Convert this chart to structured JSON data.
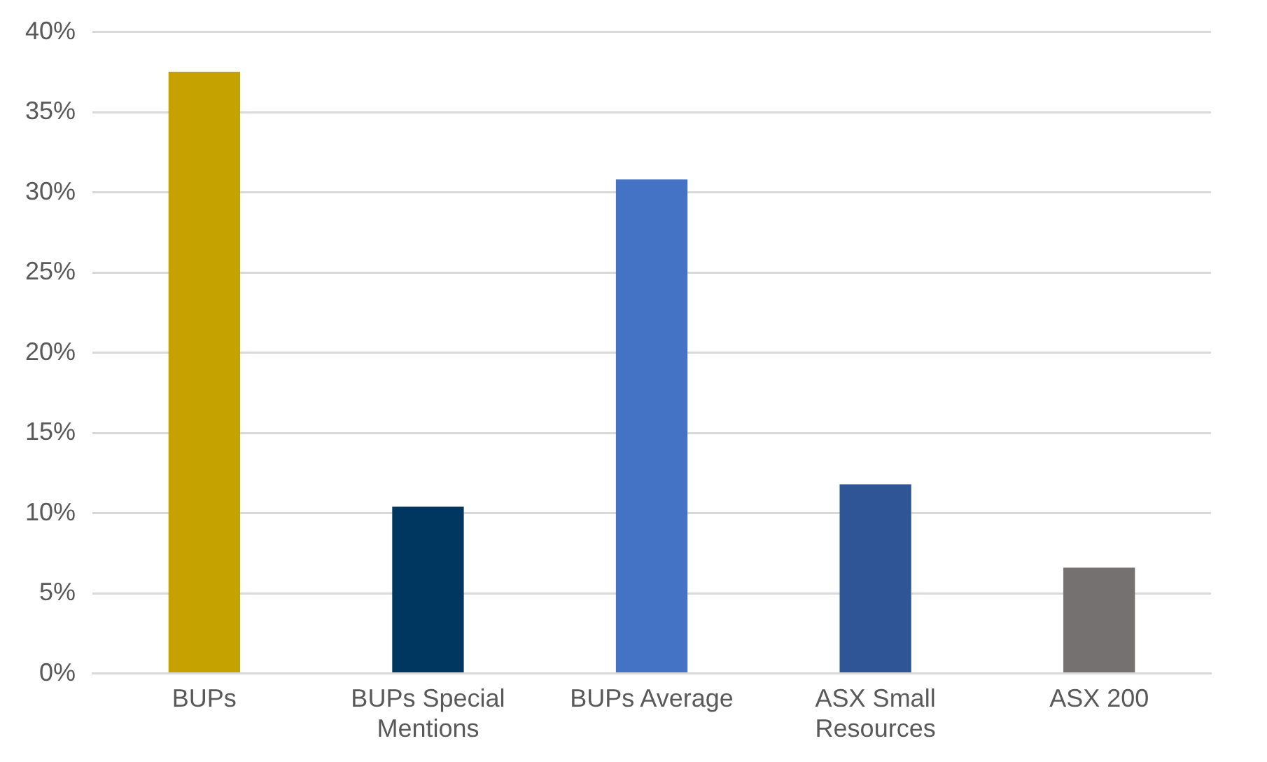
{
  "chart_data": {
    "type": "bar",
    "categories": [
      "BUPs",
      "BUPs Special Mentions",
      "BUPs Average",
      "ASX Small Resources",
      "ASX 200"
    ],
    "values": [
      37.5,
      10.4,
      30.8,
      11.8,
      6.6
    ],
    "colors": [
      "#c5a200",
      "#003761",
      "#4472c4",
      "#2f5597",
      "#767171"
    ],
    "ylim": [
      0,
      40
    ],
    "yticks": [
      {
        "value": 0,
        "label": "0%"
      },
      {
        "value": 5,
        "label": "5%"
      },
      {
        "value": 10,
        "label": "10%"
      },
      {
        "value": 15,
        "label": "15%"
      },
      {
        "value": 20,
        "label": "20%"
      },
      {
        "value": 25,
        "label": "25%"
      },
      {
        "value": 30,
        "label": "30%"
      },
      {
        "value": 35,
        "label": "35%"
      },
      {
        "value": 40,
        "label": "40%"
      }
    ],
    "grid": "y",
    "legend": false
  }
}
